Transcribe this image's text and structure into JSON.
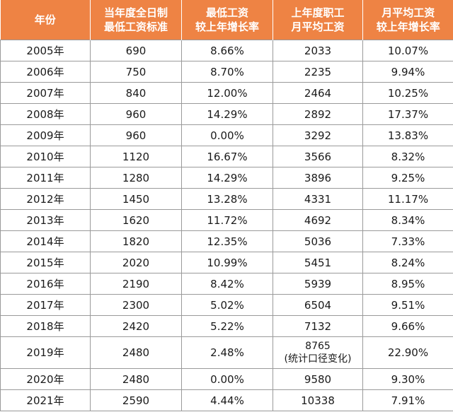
{
  "table": {
    "headers": [
      [
        "年份"
      ],
      [
        "当年度全日制",
        "最低工资标准"
      ],
      [
        "最低工资",
        "较上年增长率"
      ],
      [
        "上年度职工",
        "月平均工资"
      ],
      [
        "月平均工资",
        "较上年增长率"
      ]
    ],
    "rows": [
      {
        "year": "2005年",
        "min_wage": "690",
        "min_growth": "8.66%",
        "avg_wage": "2033",
        "avg_note": "",
        "avg_growth": "10.07%"
      },
      {
        "year": "2006年",
        "min_wage": "750",
        "min_growth": "8.70%",
        "avg_wage": "2235",
        "avg_note": "",
        "avg_growth": "9.94%"
      },
      {
        "year": "2007年",
        "min_wage": "840",
        "min_growth": "12.00%",
        "avg_wage": "2464",
        "avg_note": "",
        "avg_growth": "10.25%"
      },
      {
        "year": "2008年",
        "min_wage": "960",
        "min_growth": "14.29%",
        "avg_wage": "2892",
        "avg_note": "",
        "avg_growth": "17.37%"
      },
      {
        "year": "2009年",
        "min_wage": "960",
        "min_growth": "0.00%",
        "avg_wage": "3292",
        "avg_note": "",
        "avg_growth": "13.83%"
      },
      {
        "year": "2010年",
        "min_wage": "1120",
        "min_growth": "16.67%",
        "avg_wage": "3566",
        "avg_note": "",
        "avg_growth": "8.32%"
      },
      {
        "year": "2011年",
        "min_wage": "1280",
        "min_growth": "14.29%",
        "avg_wage": "3896",
        "avg_note": "",
        "avg_growth": "9.25%"
      },
      {
        "year": "2012年",
        "min_wage": "1450",
        "min_growth": "13.28%",
        "avg_wage": "4331",
        "avg_note": "",
        "avg_growth": "11.17%"
      },
      {
        "year": "2013年",
        "min_wage": "1620",
        "min_growth": "11.72%",
        "avg_wage": "4692",
        "avg_note": "",
        "avg_growth": "8.34%"
      },
      {
        "year": "2014年",
        "min_wage": "1820",
        "min_growth": "12.35%",
        "avg_wage": "5036",
        "avg_note": "",
        "avg_growth": "7.33%"
      },
      {
        "year": "2015年",
        "min_wage": "2020",
        "min_growth": "10.99%",
        "avg_wage": "5451",
        "avg_note": "",
        "avg_growth": "8.24%"
      },
      {
        "year": "2016年",
        "min_wage": "2190",
        "min_growth": "8.42%",
        "avg_wage": "5939",
        "avg_note": "",
        "avg_growth": "8.95%"
      },
      {
        "year": "2017年",
        "min_wage": "2300",
        "min_growth": "5.02%",
        "avg_wage": "6504",
        "avg_note": "",
        "avg_growth": "9.51%"
      },
      {
        "year": "2018年",
        "min_wage": "2420",
        "min_growth": "5.22%",
        "avg_wage": "7132",
        "avg_note": "",
        "avg_growth": "9.66%"
      },
      {
        "year": "2019年",
        "min_wage": "2480",
        "min_growth": "2.48%",
        "avg_wage": "8765",
        "avg_note": "(统计口径变化)",
        "avg_growth": "22.90%"
      },
      {
        "year": "2020年",
        "min_wage": "2480",
        "min_growth": "0.00%",
        "avg_wage": "9580",
        "avg_note": "",
        "avg_growth": "9.30%"
      },
      {
        "year": "2021年",
        "min_wage": "2590",
        "min_growth": "4.44%",
        "avg_wage": "10338",
        "avg_note": "",
        "avg_growth": "7.91%"
      }
    ]
  },
  "colors": {
    "header_bg": "#ee8344",
    "header_text": "#ffffff",
    "grid_line": "#9a9a9a"
  }
}
